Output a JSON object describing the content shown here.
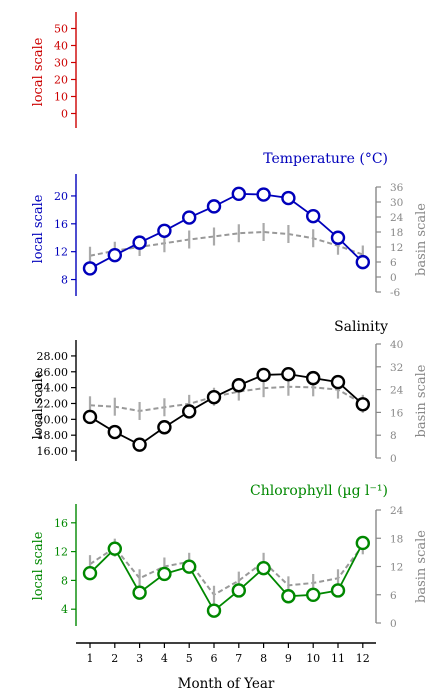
{
  "colors": {
    "top_axis": "#cc0000",
    "temperature": "#0000bb",
    "salinity": "#000000",
    "chlorophyll": "#008800",
    "basin": "#888888",
    "basin_dash": "#999999",
    "bottom_axis": "#000000"
  },
  "chart_data": [
    {
      "type": "line",
      "title": "",
      "ylabel": "local scale",
      "ylim": [
        -5,
        55
      ],
      "y_ticks": [
        "0",
        "10",
        "20",
        "30",
        "40",
        "50"
      ],
      "series": []
    },
    {
      "type": "line",
      "title": "Temperature (°C)",
      "ylabel": "local scale",
      "ylabel_right": "basin scale",
      "ylim": [
        6.5,
        22
      ],
      "y_ticks": [
        "8",
        "12",
        "16",
        "20"
      ],
      "ylim_right": [
        -6,
        36
      ],
      "y_ticks_right": [
        "-6",
        "0",
        "6",
        "12",
        "18",
        "24",
        "30",
        "36"
      ],
      "x": [
        1,
        2,
        3,
        4,
        5,
        6,
        7,
        8,
        9,
        10,
        11,
        12
      ],
      "series": [
        {
          "values": [
            9.6,
            11.5,
            13.3,
            15.0,
            16.9,
            18.5,
            20.3,
            20.2,
            19.7,
            17.1,
            14.0,
            10.5
          ]
        },
        {
          "axis": "right",
          "values": [
            8.5,
            10.5,
            12.0,
            13.5,
            15.0,
            16.2,
            17.5,
            18.0,
            17.2,
            15.5,
            12.5,
            9.0
          ]
        }
      ]
    },
    {
      "type": "line",
      "title": "Salinity",
      "ylabel": "local scale",
      "ylabel_right": "basin scale",
      "ylim": [
        15.5,
        29
      ],
      "y_ticks": [
        "16.00",
        "18.00",
        "20.00",
        "22.00",
        "24.00",
        "26.00",
        "28.00"
      ],
      "ylim_right": [
        0,
        40
      ],
      "y_ticks_right": [
        "0",
        "8",
        "16",
        "24",
        "32",
        "40"
      ],
      "x": [
        1,
        2,
        3,
        4,
        5,
        6,
        7,
        8,
        9,
        10,
        11,
        12
      ],
      "series": [
        {
          "values": [
            20.3,
            18.4,
            16.8,
            19.0,
            21.0,
            22.8,
            24.3,
            25.6,
            25.7,
            25.2,
            24.7,
            21.9
          ]
        },
        {
          "axis": "right",
          "values": [
            18.5,
            18.0,
            16.5,
            17.8,
            19.0,
            21.5,
            23.3,
            24.5,
            25.0,
            24.8,
            24.0,
            19.0
          ]
        }
      ]
    },
    {
      "type": "line",
      "title": "Chlorophyll (µg l⁻¹)",
      "ylabel": "local scale",
      "ylabel_right": "basin scale",
      "ylim": [
        2.5,
        17.5
      ],
      "y_ticks": [
        "4",
        "8",
        "12",
        "16"
      ],
      "ylim_right": [
        0,
        24
      ],
      "y_ticks_right": [
        "0",
        "6",
        "12",
        "18",
        "24"
      ],
      "x": [
        1,
        2,
        3,
        4,
        5,
        6,
        7,
        8,
        9,
        10,
        11,
        12
      ],
      "xlabel": "Month of Year",
      "x_ticks": [
        "1",
        "2",
        "3",
        "4",
        "5",
        "6",
        "7",
        "8",
        "9",
        "10",
        "11",
        "12"
      ],
      "series": [
        {
          "values": [
            9.0,
            12.4,
            6.3,
            8.9,
            9.9,
            3.8,
            6.6,
            9.7,
            5.8,
            6.0,
            6.6,
            13.2
          ]
        },
        {
          "axis": "right",
          "values": [
            12.5,
            16.0,
            9.5,
            12.0,
            13.0,
            6.0,
            9.0,
            13.0,
            8.0,
            8.5,
            9.5,
            16.5
          ]
        }
      ]
    }
  ]
}
